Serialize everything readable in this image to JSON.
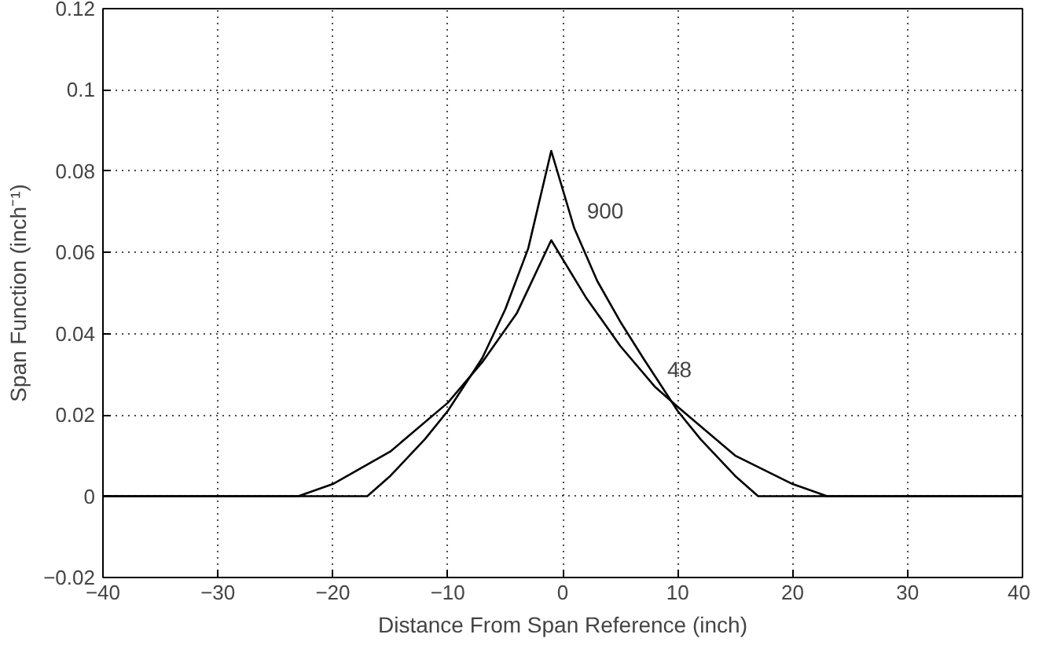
{
  "chart_data": {
    "type": "line",
    "xlabel": "Distance From Span Reference (inch)",
    "ylabel": "Span Function (inch⁻¹)",
    "xlim": [
      -40,
      40
    ],
    "ylim": [
      -0.02,
      0.12
    ],
    "xticks": [
      -40,
      -30,
      -20,
      -10,
      0,
      10,
      20,
      30,
      40
    ],
    "yticks": [
      -0.02,
      0,
      0.02,
      0.04,
      0.06,
      0.08,
      0.1,
      0.12
    ],
    "grid": true,
    "series": [
      {
        "color": "#000000",
        "x": [
          -40,
          -17,
          -15,
          -12,
          -10,
          -7,
          -5,
          -3,
          -1,
          1,
          3,
          5,
          7,
          10,
          12,
          15,
          17,
          40
        ],
        "values": [
          0,
          0,
          0.005,
          0.014,
          0.021,
          0.034,
          0.046,
          0.061,
          0.085,
          0.066,
          0.053,
          0.043,
          0.034,
          0.021,
          0.014,
          0.005,
          0,
          0
        ]
      },
      {
        "color": "#000000",
        "x": [
          -40,
          -23,
          -20,
          -15,
          -10,
          -7,
          -4,
          -1,
          2,
          5,
          8,
          10,
          15,
          20,
          23,
          40
        ],
        "values": [
          0,
          0,
          0.003,
          0.011,
          0.023,
          0.033,
          0.045,
          0.063,
          0.049,
          0.037,
          0.027,
          0.022,
          0.01,
          0.003,
          0,
          0
        ]
      }
    ],
    "annotations": [
      {
        "text": "900",
        "x": 1,
        "y": 0.066
      },
      {
        "text": "48",
        "x": 8,
        "y": 0.027
      }
    ]
  }
}
